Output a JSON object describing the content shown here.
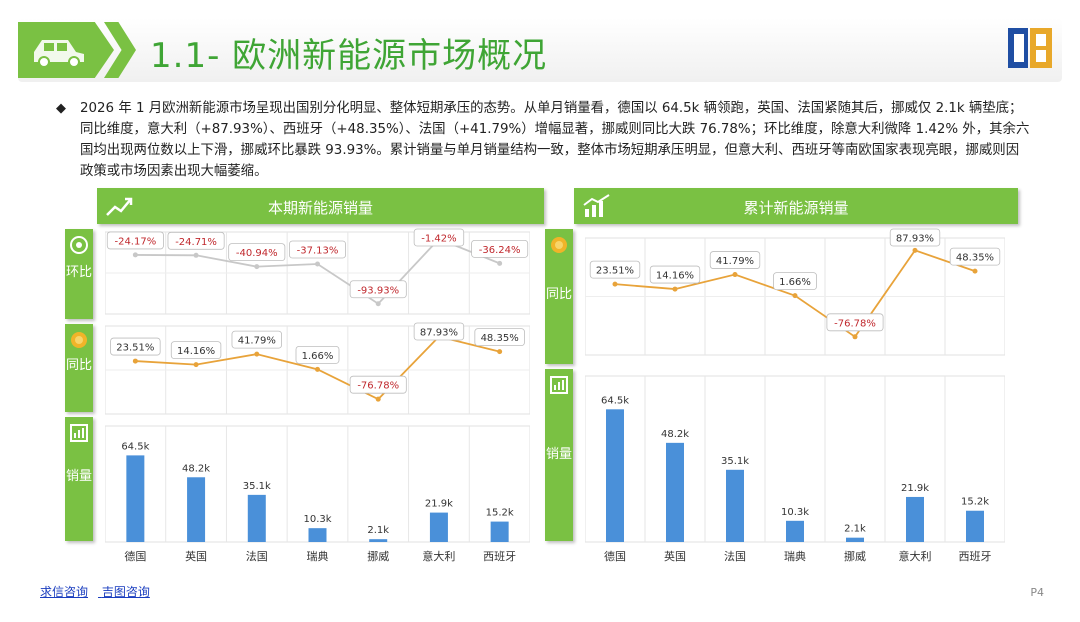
{
  "title": "1.1- 欧洲新能源市场概况",
  "summary": "2026 年 1 月欧洲新能源市场呈现出国别分化明显、整体短期承压的态势。从单月销量看，德国以 64.5k 辆领跑，英国、法国紧随其后，挪威仅 2.1k 辆垫底；同比维度，意大利（+87.93%）、西班牙（+48.35%）、法国（+41.79%）增幅显著，挪威则同比大跌 76.78%；环比维度，除意大利微降 1.42% 外，其余六国均出现两位数以上下滑，挪威环比暴跌 93.93%。累计销量与单月销量结构一致，整体市场短期承压明显，但意大利、西班牙等南欧国家表现亮眼，挪威则因政策或市场因素出现大幅萎缩。",
  "left_panel": {
    "title": "本期新能源销量",
    "side_mom": "环比",
    "side_yoy": "同比",
    "side_sales": "销量"
  },
  "right_panel": {
    "title": "累计新能源销量",
    "side_yoy": "同比",
    "side_sales": "销量"
  },
  "footer": {
    "link1": "求信咨询",
    "link2": "吉图咨询"
  },
  "page_number": "P4",
  "colors": {
    "green": "#7ac143",
    "bar": "#4a90d9",
    "yoy_line": "#e8a33a",
    "mom_line": "#c8c8c8",
    "title": "#3fa535"
  },
  "chart_data": [
    {
      "type": "line",
      "name_hint": "left-mom",
      "categories": [
        "德国",
        "英国",
        "法国",
        "瑞典",
        "挪威",
        "意大利",
        "西班牙"
      ],
      "values": [
        -24.17,
        -24.71,
        -40.94,
        -37.13,
        -93.93,
        -1.42,
        -36.24
      ],
      "labels": [
        "-24.17%",
        "-24.71%",
        "-40.94%",
        "-37.13%",
        "-93.93%",
        "-1.42%",
        "-36.24%"
      ],
      "ylim": [
        -100,
        0
      ]
    },
    {
      "type": "line",
      "name_hint": "left-yoy",
      "categories": [
        "德国",
        "英国",
        "法国",
        "瑞典",
        "挪威",
        "意大利",
        "西班牙"
      ],
      "values": [
        23.51,
        14.16,
        41.79,
        1.66,
        -76.78,
        87.93,
        48.35
      ],
      "labels": [
        "23.51%",
        "14.16%",
        "41.79%",
        "1.66%",
        "-76.78%",
        "87.93%",
        "48.35%"
      ],
      "ylim": [
        -100,
        100
      ]
    },
    {
      "type": "bar",
      "name_hint": "left-sales",
      "categories": [
        "德国",
        "英国",
        "法国",
        "瑞典",
        "挪威",
        "意大利",
        "西班牙"
      ],
      "values": [
        64.5,
        48.2,
        35.1,
        10.3,
        2.1,
        21.9,
        15.2
      ],
      "labels": [
        "64.5k",
        "48.2k",
        "35.1k",
        "10.3k",
        "2.1k",
        "21.9k",
        "15.2k"
      ],
      "ylim": [
        0,
        70
      ]
    },
    {
      "type": "line",
      "name_hint": "right-yoy",
      "categories": [
        "德国",
        "英国",
        "法国",
        "瑞典",
        "挪威",
        "意大利",
        "西班牙"
      ],
      "values": [
        23.51,
        14.16,
        41.79,
        1.66,
        -76.78,
        87.93,
        48.35
      ],
      "labels": [
        "23.51%",
        "14.16%",
        "41.79%",
        "1.66%",
        "-76.78%",
        "87.93%",
        "48.35%"
      ],
      "ylim": [
        -100,
        100
      ]
    },
    {
      "type": "bar",
      "name_hint": "right-sales",
      "categories": [
        "德国",
        "英国",
        "法国",
        "瑞典",
        "挪威",
        "意大利",
        "西班牙"
      ],
      "values": [
        64.5,
        48.2,
        35.1,
        10.3,
        2.1,
        21.9,
        15.2
      ],
      "labels": [
        "64.5k",
        "48.2k",
        "35.1k",
        "10.3k",
        "2.1k",
        "21.9k",
        "15.2k"
      ],
      "ylim": [
        0,
        70
      ]
    }
  ]
}
